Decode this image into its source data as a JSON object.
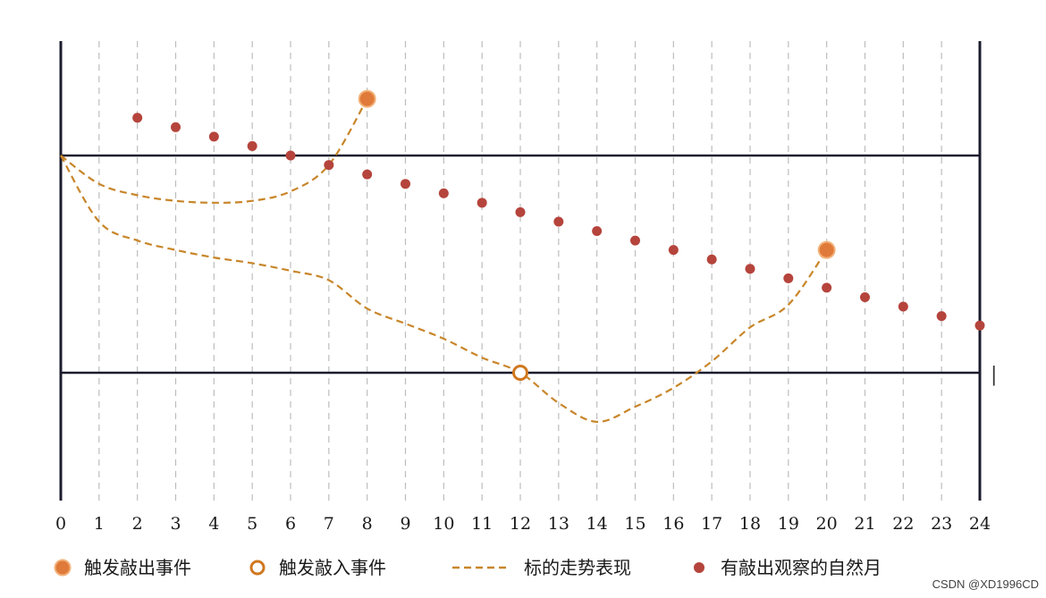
{
  "chart_data": {
    "type": "scatter",
    "x_ticks": [
      0,
      1,
      2,
      3,
      4,
      5,
      6,
      7,
      8,
      9,
      10,
      11,
      12,
      13,
      14,
      15,
      16,
      17,
      18,
      19,
      20,
      21,
      22,
      23,
      24
    ],
    "xlim": [
      0,
      24
    ],
    "ylim": [
      0,
      1
    ],
    "grid": "vertical dashed",
    "reference_lines": [
      0.575,
      0.0
    ],
    "right_end_mark": "|",
    "series": [
      {
        "name": "有敲出观察的自然月",
        "kind": "points",
        "color": "#b5443c",
        "x": [
          2,
          3,
          4,
          5,
          6,
          7,
          8,
          9,
          10,
          11,
          12,
          13,
          14,
          15,
          16,
          17,
          18,
          19,
          20,
          21,
          22,
          23,
          24
        ],
        "y": [
          0.675,
          0.65,
          0.625,
          0.6,
          0.575,
          0.55,
          0.525,
          0.5,
          0.475,
          0.45,
          0.425,
          0.4,
          0.375,
          0.35,
          0.325,
          0.3,
          0.275,
          0.25,
          0.225,
          0.2,
          0.175,
          0.15,
          0.125
        ]
      },
      {
        "name": "触发敲出事件",
        "kind": "filled-circle",
        "color": "#e07a3a",
        "x": [
          8,
          20
        ],
        "y": [
          0.725,
          0.325
        ]
      },
      {
        "name": "触发敲入事件",
        "kind": "hollow-circle",
        "color": "#d0781f",
        "x": [
          12
        ],
        "y": [
          0.0
        ]
      },
      {
        "name": "标的走势表现",
        "kind": "dashed-line",
        "color": "#c8862a",
        "paths": [
          {
            "x": [
              0,
              1,
              2,
              3,
              4,
              5,
              6,
              7,
              8
            ],
            "y": [
              0.575,
              0.5,
              0.47,
              0.455,
              0.45,
              0.455,
              0.48,
              0.55,
              0.725
            ]
          },
          {
            "x": [
              0,
              1,
              2,
              3,
              4,
              5,
              6,
              7,
              8,
              9,
              10,
              11,
              12,
              13,
              14,
              15,
              16,
              17,
              18,
              19,
              20
            ],
            "y": [
              0.575,
              0.4,
              0.35,
              0.325,
              0.305,
              0.29,
              0.27,
              0.245,
              0.17,
              0.13,
              0.09,
              0.04,
              0.0,
              -0.08,
              -0.13,
              -0.09,
              -0.04,
              0.03,
              0.12,
              0.18,
              0.325
            ]
          }
        ]
      }
    ]
  },
  "legend": [
    {
      "label": "触发敲出事件",
      "marker": "filled-circle"
    },
    {
      "label": "触发敲入事件",
      "marker": "hollow-circle"
    },
    {
      "label": "标的走势表现",
      "marker": "dashed-line"
    },
    {
      "label": "有敲出观察的自然月",
      "marker": "small-dot"
    }
  ],
  "watermark": "CSDN @XD1996CD"
}
